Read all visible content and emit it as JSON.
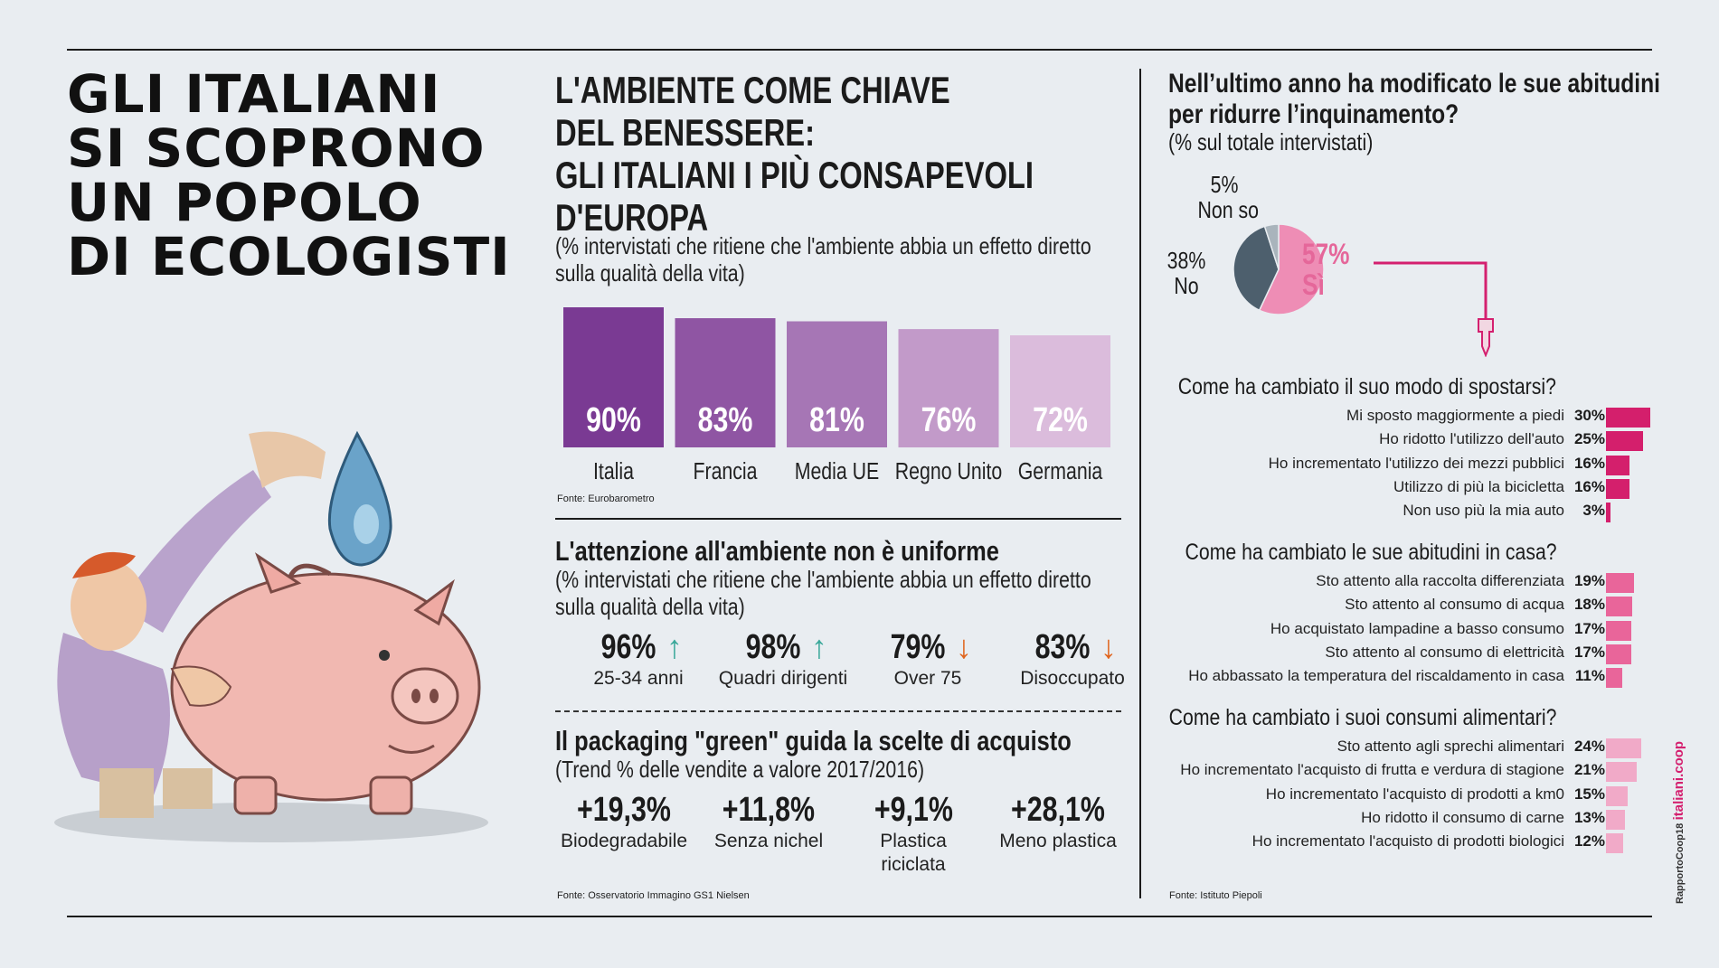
{
  "main_title": [
    "GLI ITALIANI",
    "SI SCOPRONO",
    "UN POPOLO",
    "DI ECOLOGISTI"
  ],
  "section1": {
    "title": [
      "L'AMBIENTE COME CHIAVE",
      "DEL BENESSERE:",
      "GLI ITALIANI I PIÙ CONSAPEVOLI",
      "D'EUROPA"
    ],
    "subtitle": [
      "(% intervistati che ritiene che l'ambiente abbia un effetto diretto",
      "sulla qualità della vita)"
    ],
    "source": "Fonte: Eurobarometro"
  },
  "section2": {
    "title": "L'attenzione all'ambiente non è uniforme",
    "subtitle": [
      "(% intervistati che ritiene che l'ambiente abbia un effetto diretto",
      "sulla qualità della vita)"
    ],
    "stats": [
      {
        "value": "96%",
        "label": "25-34 anni",
        "trend": "up"
      },
      {
        "value": "98%",
        "label": "Quadri dirigenti",
        "trend": "up"
      },
      {
        "value": "79%",
        "label": "Over 75",
        "trend": "down"
      },
      {
        "value": "83%",
        "label": "Disoccupato",
        "trend": "down"
      }
    ]
  },
  "section3": {
    "title": "Il packaging \"green\" guida la scelte di acquisto",
    "subtitle": "(Trend % delle vendite a valore 2017/2016)",
    "stats": [
      {
        "value": "+19,3%",
        "label": "Biodegradabile"
      },
      {
        "value": "+11,8%",
        "label": "Senza nichel"
      },
      {
        "value": "+9,1%",
        "label": "Plastica riciclata"
      },
      {
        "value": "+28,1%",
        "label": "Meno plastica"
      }
    ],
    "source": "Fonte: Osservatorio Immagino GS1 Nielsen"
  },
  "right": {
    "question": [
      "Nell’ultimo anno ha modificato le sue abitudini",
      "per ridurre l’inquinamento?"
    ],
    "subtitle": "(% sul totale intervistati)",
    "pie_labels": {
      "nonso_pct": "5%",
      "nonso": "Non so",
      "no_pct": "38%",
      "no": "No",
      "si_pct": "57%",
      "si": "Sì"
    },
    "source": "Fonte: Istituto Piepoli"
  },
  "colors": {
    "purple": [
      "#7a3a93",
      "#8f55a3",
      "#a676b5",
      "#c29ac9",
      "#dbbcdc"
    ],
    "pink": "#d41f6c",
    "pink_mid": "#e9659a",
    "pink_light": "#f1aac8",
    "pie_si": "#ee8db5",
    "pie_no": "#4d5f6d",
    "pie_nonso": "#a9b4bc",
    "teal": "#3aa89a",
    "orange": "#e0651e"
  },
  "side_credit": {
    "brand": "italiani.coop",
    "text": "RapportoCoop18"
  },
  "chart_data": [
    {
      "type": "bar",
      "title": "L'AMBIENTE COME CHIAVE DEL BENESSERE",
      "categories": [
        "Italia",
        "Francia",
        "Media UE",
        "Regno Unito",
        "Germania"
      ],
      "values": [
        90,
        83,
        81,
        76,
        72
      ],
      "labels": [
        "90%",
        "83%",
        "81%",
        "76%",
        "72%"
      ],
      "ylim": [
        0,
        100
      ]
    },
    {
      "type": "pie",
      "title": "Nell’ultimo anno ha modificato le sue abitudini per ridurre l’inquinamento?",
      "categories": [
        "Sì",
        "No",
        "Non so"
      ],
      "values": [
        57,
        38,
        5
      ]
    },
    {
      "type": "bar",
      "title": "Come ha cambiato il suo modo di spostarsi?",
      "color": "pink",
      "categories": [
        "Mi sposto maggiormente a piedi",
        "Ho ridotto l'utilizzo dell'auto",
        "Ho incrementato l'utilizzo dei mezzi pubblici",
        "Utilizzo di più la bicicletta",
        "Non uso più la mia auto"
      ],
      "values": [
        30,
        25,
        16,
        16,
        3
      ],
      "labels": [
        "30%",
        "25%",
        "16%",
        "16%",
        "3%"
      ]
    },
    {
      "type": "bar",
      "title": "Come ha cambiato le sue abitudini in casa?",
      "color": "pink_mid",
      "categories": [
        "Sto attento alla raccolta differenziata",
        "Sto attento al consumo di acqua",
        "Ho acquistato lampadine a basso consumo",
        "Sto attento al consumo di elettricità",
        "Ho abbassato la temperatura del riscaldamento in casa"
      ],
      "values": [
        19,
        18,
        17,
        17,
        11
      ],
      "labels": [
        "19%",
        "18%",
        "17%",
        "17%",
        "11%"
      ]
    },
    {
      "type": "bar",
      "title": "Come ha cambiato i suoi consumi alimentari?",
      "color": "pink_light",
      "categories": [
        "Sto attento agli sprechi alimentari",
        "Ho incrementato l'acquisto di frutta e verdura di stagione",
        "Ho incrementato l'acquisto di prodotti a km0",
        "Ho ridotto il consumo di carne",
        "Ho incrementato l'acquisto di prodotti biologici"
      ],
      "values": [
        24,
        21,
        15,
        13,
        12
      ],
      "labels": [
        "24%",
        "21%",
        "15%",
        "13%",
        "12%"
      ]
    }
  ]
}
